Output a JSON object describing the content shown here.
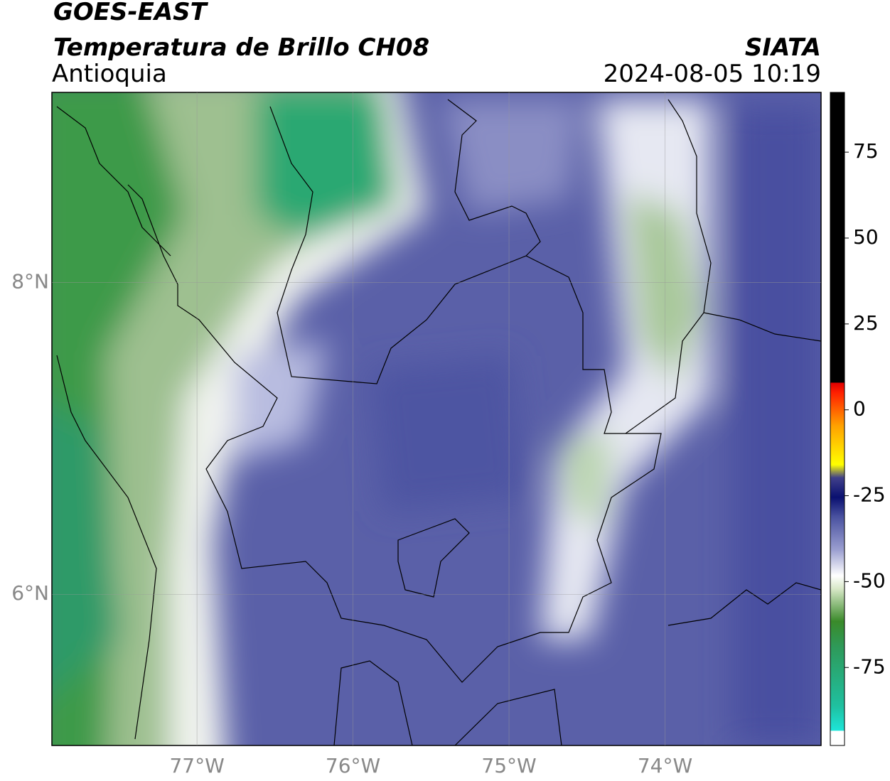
{
  "header": {
    "title": "GOES-EAST",
    "subtitle": "Temperatura de Brillo CH08",
    "region": "Antioquia",
    "source": "SIATA",
    "datetime": "2024-08-05 10:19"
  },
  "map": {
    "xlim": [
      -77.93,
      -73.0
    ],
    "ylim": [
      5.03,
      9.22
    ],
    "xticks": [
      {
        "value": -77,
        "label": "77°W"
      },
      {
        "value": -76,
        "label": "76°W"
      },
      {
        "value": -75,
        "label": "75°W"
      },
      {
        "value": -74,
        "label": "74°W"
      }
    ],
    "yticks": [
      {
        "value": 6,
        "label": "6°N"
      },
      {
        "value": 8,
        "label": "8°N"
      }
    ],
    "grid": true
  },
  "colorbar": {
    "lim": [
      -97.7,
      92.4
    ],
    "ticks": [
      -75,
      -50,
      -25,
      0,
      25,
      50,
      75
    ]
  }
}
